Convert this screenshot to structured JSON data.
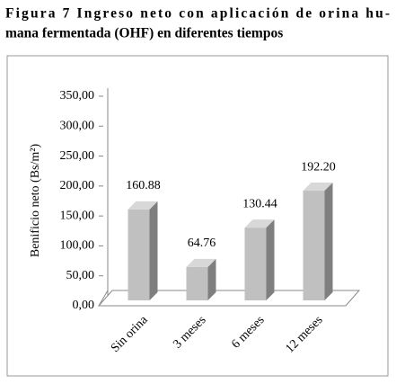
{
  "chart_data": {
    "type": "bar3d",
    "title": [
      "Figura 7 Ingreso neto con aplicación de orina hu-",
      "mana fermentada (OHF) en diferentes tiempos"
    ],
    "ylabel": "Benificio neto (Bs/m²)",
    "categories": [
      "Sin orina",
      "3 meses",
      "6 meses",
      "12 meses"
    ],
    "values": [
      160.88,
      64.76,
      130.44,
      192.2
    ],
    "value_labels": [
      "160.88",
      "64.76",
      "130.44",
      "192.20"
    ],
    "color": "#c0c0c0",
    "ylim": [
      0,
      350
    ],
    "yticks": [
      {
        "value": 0,
        "label": "0,00"
      },
      {
        "value": 50,
        "label": "50,00"
      },
      {
        "value": 100,
        "label": "100,00"
      },
      {
        "value": 150,
        "label": "150,00"
      },
      {
        "value": 200,
        "label": "200,00"
      },
      {
        "value": 250,
        "label": "250,00"
      },
      {
        "value": 300,
        "label": "300,00"
      },
      {
        "value": 350,
        "label": "350,00"
      }
    ]
  }
}
